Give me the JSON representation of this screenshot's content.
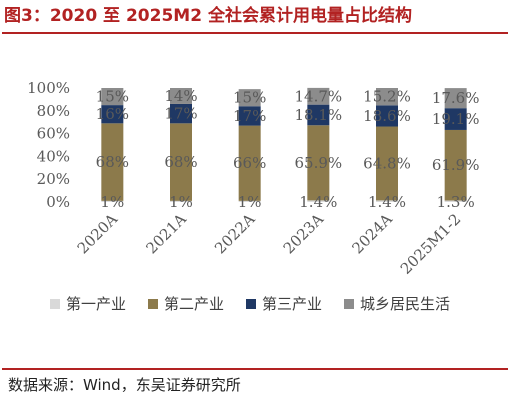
{
  "figure_title": "图3：2020 至 2025M2 全社会累计用电量占比结构",
  "source": "数据来源：Wind，东吴证券研究所",
  "colors": {
    "primary": "#d9d9d9",
    "secondary": "#8c7a4b",
    "tertiary": "#1f3864",
    "residential": "#8c8c8c",
    "title_red": "#b22222"
  },
  "chart_data": {
    "type": "bar",
    "stacked": true,
    "categories": [
      "2020A",
      "2021A",
      "2022A",
      "2023A",
      "2024A",
      "2025M1-2"
    ],
    "ylim": [
      0,
      100
    ],
    "y_ticks": [
      "0%",
      "20%",
      "40%",
      "60%",
      "80%",
      "100%"
    ],
    "grid": false,
    "legend_position": "bottom",
    "series": [
      {
        "name": "第一产业",
        "values": [
          1,
          1,
          1,
          1.4,
          1.4,
          1.3
        ],
        "labels": [
          "1%",
          "1%",
          "1%",
          "1.4%",
          "1.4%",
          "1.3%"
        ]
      },
      {
        "name": "第二产业",
        "values": [
          68,
          68,
          66,
          65.9,
          64.8,
          61.9
        ],
        "labels": [
          "68%",
          "68%",
          "66%",
          "65.9%",
          "64.8%",
          "61.9%"
        ]
      },
      {
        "name": "第三产业",
        "values": [
          16,
          17,
          17,
          18.1,
          18.6,
          19.1
        ],
        "labels": [
          "16%",
          "17%",
          "17%",
          "18.1%",
          "18.6%",
          "19.1%"
        ]
      },
      {
        "name": "城乡居民生活",
        "values": [
          15,
          14,
          15,
          14.7,
          15.2,
          17.6
        ],
        "labels": [
          "15%",
          "14%",
          "15%",
          "14.7%",
          "15.2%",
          "17.6%"
        ]
      }
    ]
  }
}
